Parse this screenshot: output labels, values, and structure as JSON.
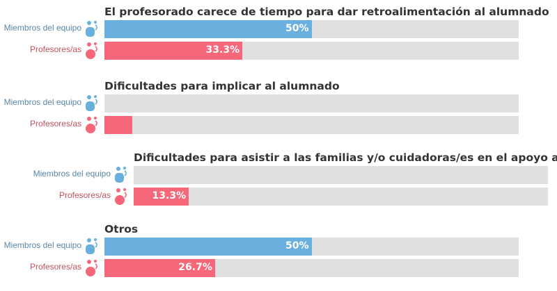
{
  "chart_data": {
    "type": "bar",
    "orientation": "horizontal",
    "xlim": [
      0,
      100
    ],
    "series_names": [
      "Miembros del equipo",
      "Profesores/as"
    ],
    "colors": {
      "Miembros del equipo": "#6ab0de",
      "Profesores/as": "#f7677a",
      "track": "#e0e0e0"
    },
    "groups": [
      {
        "title": "El profesorado carece de tiempo para dar retroalimentación al alumnado",
        "values": [
          50,
          33.3
        ],
        "labels": [
          "50%",
          "33.3%"
        ]
      },
      {
        "title": "Dificultades para implicar al alumnado",
        "values": [
          0,
          6.7
        ],
        "labels": [
          "",
          ""
        ]
      },
      {
        "title": "Dificultades para asistir a las familias y/o cuidadoras/es en el apoyo al alu",
        "values": [
          0,
          13.3
        ],
        "labels": [
          "",
          "13.3%"
        ]
      },
      {
        "title": "Otros",
        "values": [
          50,
          26.7
        ],
        "labels": [
          "50%",
          "26.7%"
        ]
      }
    ]
  }
}
